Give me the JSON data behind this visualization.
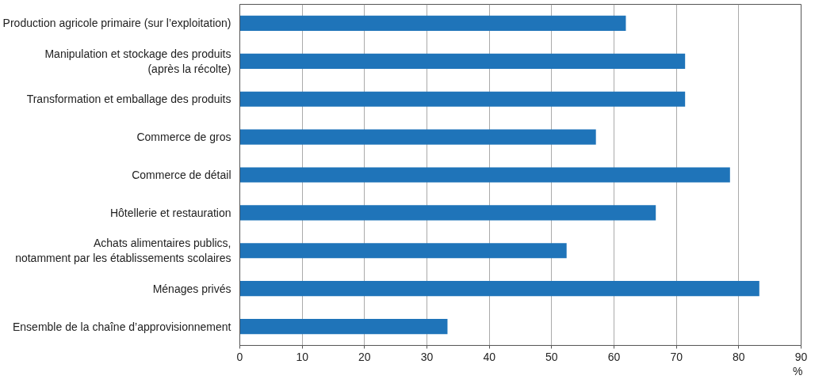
{
  "chart_data": {
    "type": "bar",
    "orientation": "horizontal",
    "xlabel": "%",
    "categories": [
      "Production agricole primaire (sur l’exploitation)",
      "Manipulation et stockage des produits\n(après la récolte)",
      "Transformation et emballage des produits",
      "Commerce de gros",
      "Commerce de détail",
      "Hôtellerie et restauration",
      "Achats alimentaires publics,\nnotamment par les établissements scolaires",
      "Ménages privés",
      "Ensemble de la chaîne d’approvisionnement"
    ],
    "values": [
      61.9,
      71.4,
      71.4,
      57.1,
      78.6,
      66.7,
      52.4,
      83.3,
      33.3
    ],
    "color": "#1f74b9",
    "xlim": [
      0,
      90
    ],
    "xticks": [
      0,
      10,
      20,
      30,
      40,
      50,
      60,
      70,
      80,
      90
    ],
    "grid": "x"
  }
}
